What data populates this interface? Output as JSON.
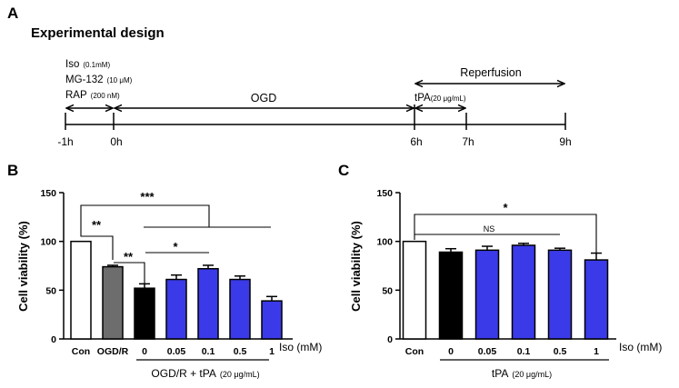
{
  "panel_a": {
    "label": "A",
    "title": "Experimental design",
    "drugs": [
      {
        "name": "Iso",
        "dose": "(0.1mM)"
      },
      {
        "name": "MG-132",
        "dose": "(10 μM)"
      },
      {
        "name": "RAP",
        "dose": "(200 nM)"
      }
    ],
    "ogd_label": "OGD",
    "reperfusion_label": "Reperfusion",
    "tpa": {
      "name": "tPA",
      "dose": "(20 μg/mL)"
    },
    "timepoints": [
      "-1h",
      "0h",
      "6h",
      "7h",
      "9h"
    ]
  },
  "panel_b_label": "B",
  "panel_c_label": "C",
  "chart_data": [
    {
      "type": "bar",
      "panel": "B",
      "ylabel": "Cell viability (%)",
      "ylim": [
        0,
        150
      ],
      "yticks": [
        "0",
        "50",
        "100",
        "150"
      ],
      "categories": [
        "Con",
        "OGD/R",
        "0",
        "0.05",
        "0.1",
        "0.5",
        "1"
      ],
      "values": [
        100,
        74,
        52,
        61,
        72,
        61,
        39
      ],
      "errors": [
        0,
        1.5,
        4.5,
        4.5,
        3.5,
        3.5,
        4.5
      ],
      "colors": [
        "#ffffff",
        "#6d6d6d",
        "#000000",
        "#3a3ae8",
        "#3a3ae8",
        "#3a3ae8",
        "#3a3ae8"
      ],
      "x_unit": "Iso (mM)",
      "group_label": {
        "text": "OGD/R + tPA",
        "small": "(20 μg/mL)"
      },
      "significance": [
        {
          "label": "**",
          "from": "Con",
          "to": "OGD/R"
        },
        {
          "label": "**",
          "from": "OGD/R",
          "to": "0"
        },
        {
          "label": "*",
          "from": "0",
          "to": "0.1"
        },
        {
          "label": "***",
          "from": "Con",
          "to": "0–1"
        }
      ]
    },
    {
      "type": "bar",
      "panel": "C",
      "ylabel": "Cell viability (%)",
      "ylim": [
        0,
        150
      ],
      "yticks": [
        "0",
        "50",
        "100",
        "150"
      ],
      "categories": [
        "Con",
        "0",
        "0.05",
        "0.1",
        "0.5",
        "1"
      ],
      "values": [
        100,
        89,
        91,
        96,
        91,
        81
      ],
      "errors": [
        0,
        3.5,
        4,
        2,
        2,
        7
      ],
      "colors": [
        "#ffffff",
        "#000000",
        "#3a3ae8",
        "#3a3ae8",
        "#3a3ae8",
        "#3a3ae8"
      ],
      "x_unit": "Iso (mM)",
      "group_label": {
        "text": "tPA",
        "small": "(20 μg/mL)"
      },
      "significance": [
        {
          "label": "NS",
          "from": "Con",
          "to": "0.5"
        },
        {
          "label": "*",
          "from": "Con",
          "to": "1"
        }
      ]
    }
  ]
}
